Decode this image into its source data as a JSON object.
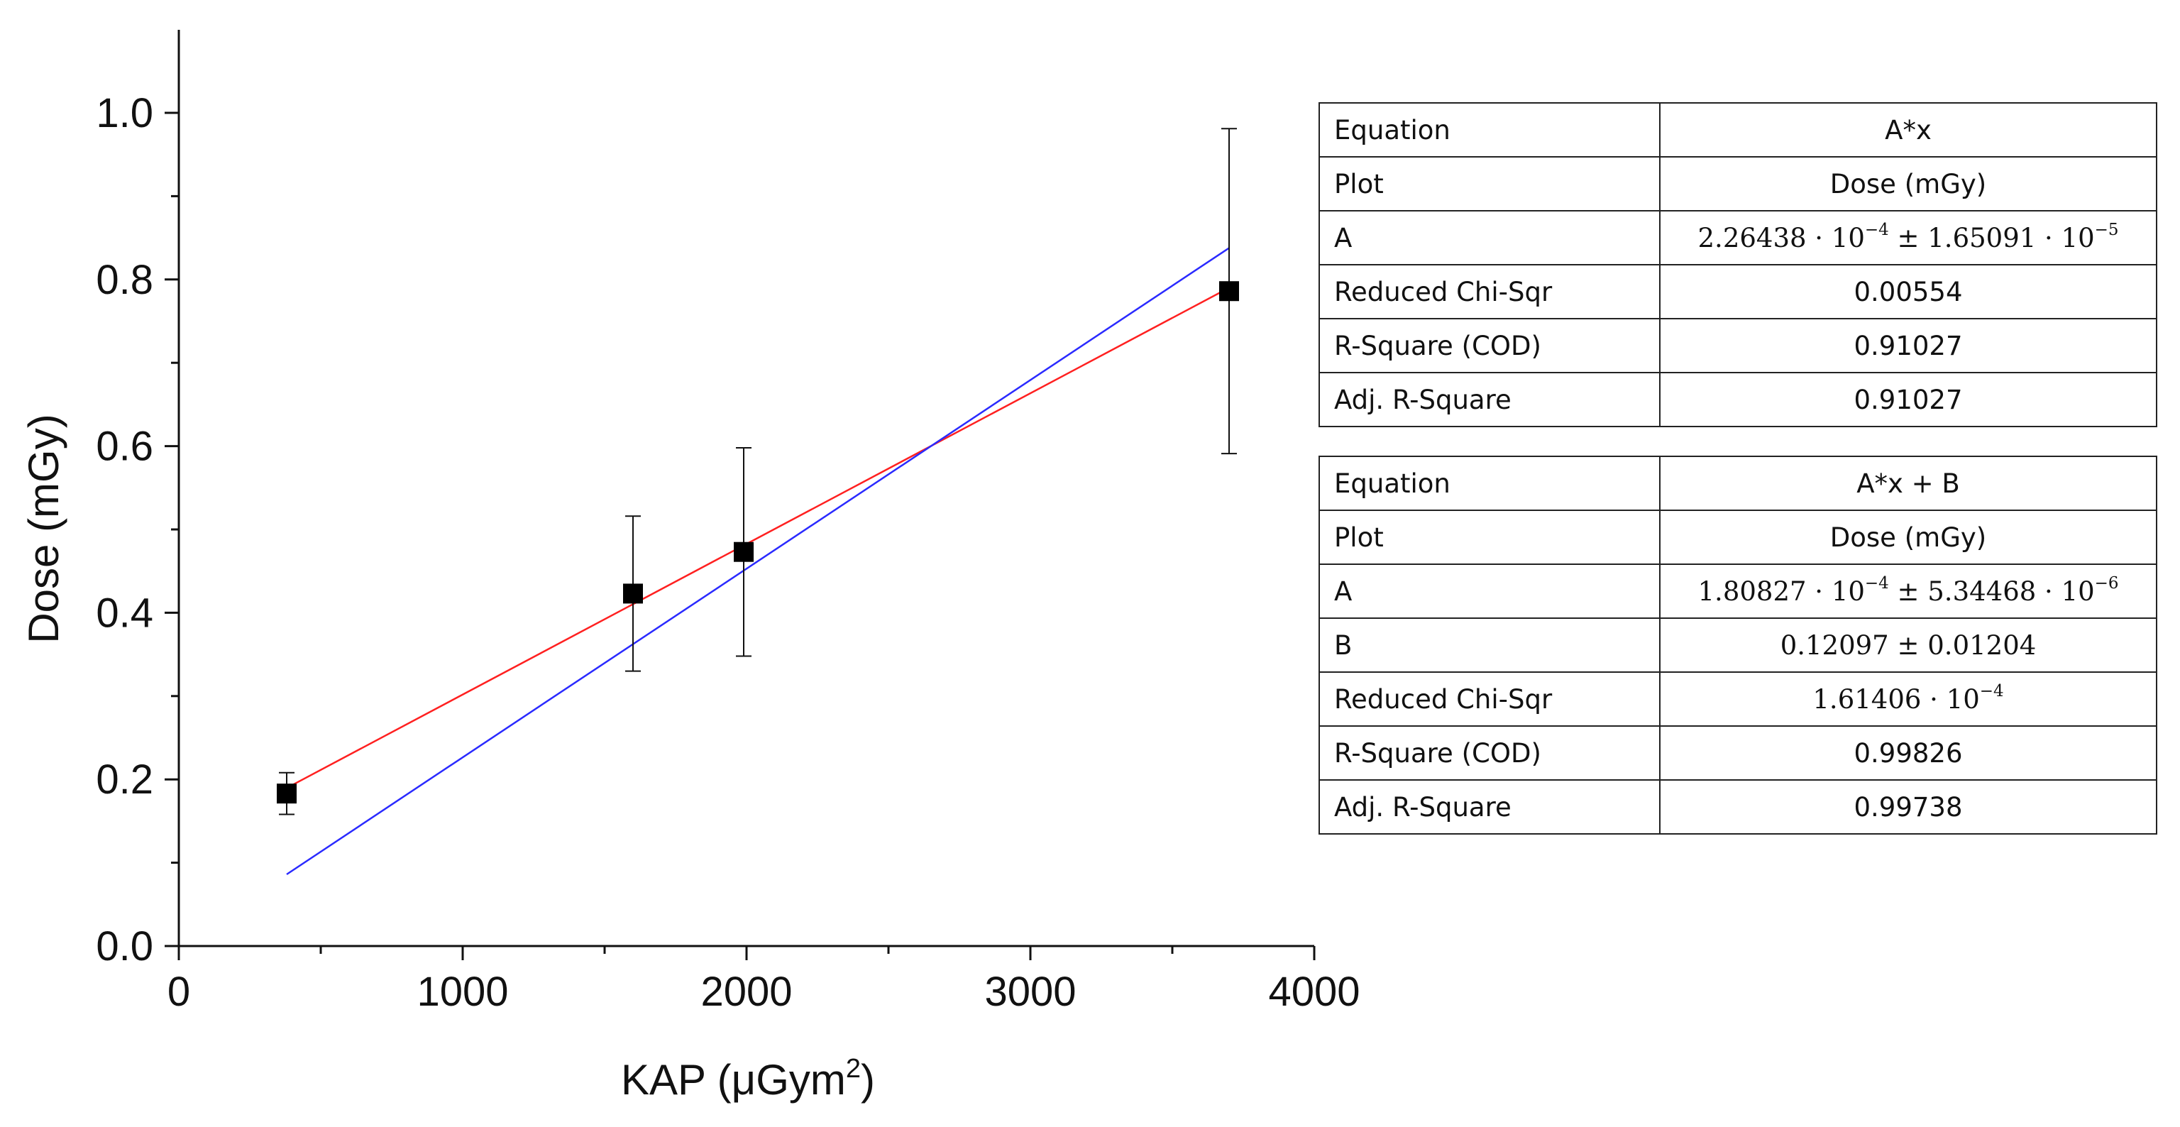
{
  "chart_data": {
    "type": "scatter",
    "title": "",
    "xlabel": "KAP (μGym²)",
    "xlabel_parts": {
      "base": "KAP (μGym",
      "sup": "2",
      "tail": ")"
    },
    "ylabel": "Dose (mGy)",
    "xlim": [
      0,
      4000
    ],
    "ylim": [
      0,
      1.1
    ],
    "x_ticks": [
      "0",
      "1000",
      "2000",
      "3000",
      "4000"
    ],
    "x_tick_values": [
      0,
      1000,
      2000,
      3000,
      4000
    ],
    "y_ticks": [
      "0.0",
      "0.2",
      "0.4",
      "0.6",
      "0.8",
      "1.0"
    ],
    "y_tick_values": [
      0,
      0.2,
      0.4,
      0.6,
      0.8,
      1.0
    ],
    "grid": false,
    "series": [
      {
        "name": "Dose (mGy)",
        "marker": "square",
        "color": "#000000",
        "x": [
          380,
          1600,
          1990,
          3700
        ],
        "y": [
          0.183,
          0.423,
          0.473,
          0.786
        ],
        "yerr": [
          0.025,
          0.093,
          0.125,
          0.195
        ]
      }
    ],
    "fits": [
      {
        "name": "A*x + B",
        "color": "#ff2020",
        "slope": 0.000180827,
        "intercept": 0.12097,
        "x_range": [
          380,
          3700
        ]
      },
      {
        "name": "A*x",
        "color": "#2a2aff",
        "slope": 0.000226438,
        "intercept": 0,
        "x_range": [
          380,
          3700
        ]
      }
    ]
  },
  "fit_tables": [
    {
      "rows": [
        {
          "label": "Equation",
          "value": "A*x",
          "kind": "text"
        },
        {
          "label": "Plot",
          "value": "Dose (mGy)",
          "kind": "text"
        },
        {
          "label": "A",
          "kind": "pm",
          "m1": "2.26438",
          "e1": "−4",
          "m2": "1.65091",
          "e2": "−5"
        },
        {
          "label": "Reduced Chi-Sqr",
          "value": "0.00554",
          "kind": "text"
        },
        {
          "label": "R-Square (COD)",
          "value": "0.91027",
          "kind": "text"
        },
        {
          "label": "Adj. R-Square",
          "value": "0.91027",
          "kind": "text"
        }
      ]
    },
    {
      "rows": [
        {
          "label": "Equation",
          "value": "A*x + B",
          "kind": "text"
        },
        {
          "label": "Plot",
          "value": "Dose (mGy)",
          "kind": "text"
        },
        {
          "label": "A",
          "kind": "pm",
          "m1": "1.80827",
          "e1": "−4",
          "m2": "5.34468",
          "e2": "−6"
        },
        {
          "label": "B",
          "kind": "pm2",
          "m1": "0.12097",
          "m2": "0.01204"
        },
        {
          "label": "Reduced Chi-Sqr",
          "kind": "sci",
          "m1": "1.61406",
          "e1": "−4"
        },
        {
          "label": "R-Square (COD)",
          "value": "0.99826",
          "kind": "text"
        },
        {
          "label": "Adj. R-Square",
          "value": "0.99738",
          "kind": "text"
        }
      ]
    }
  ]
}
